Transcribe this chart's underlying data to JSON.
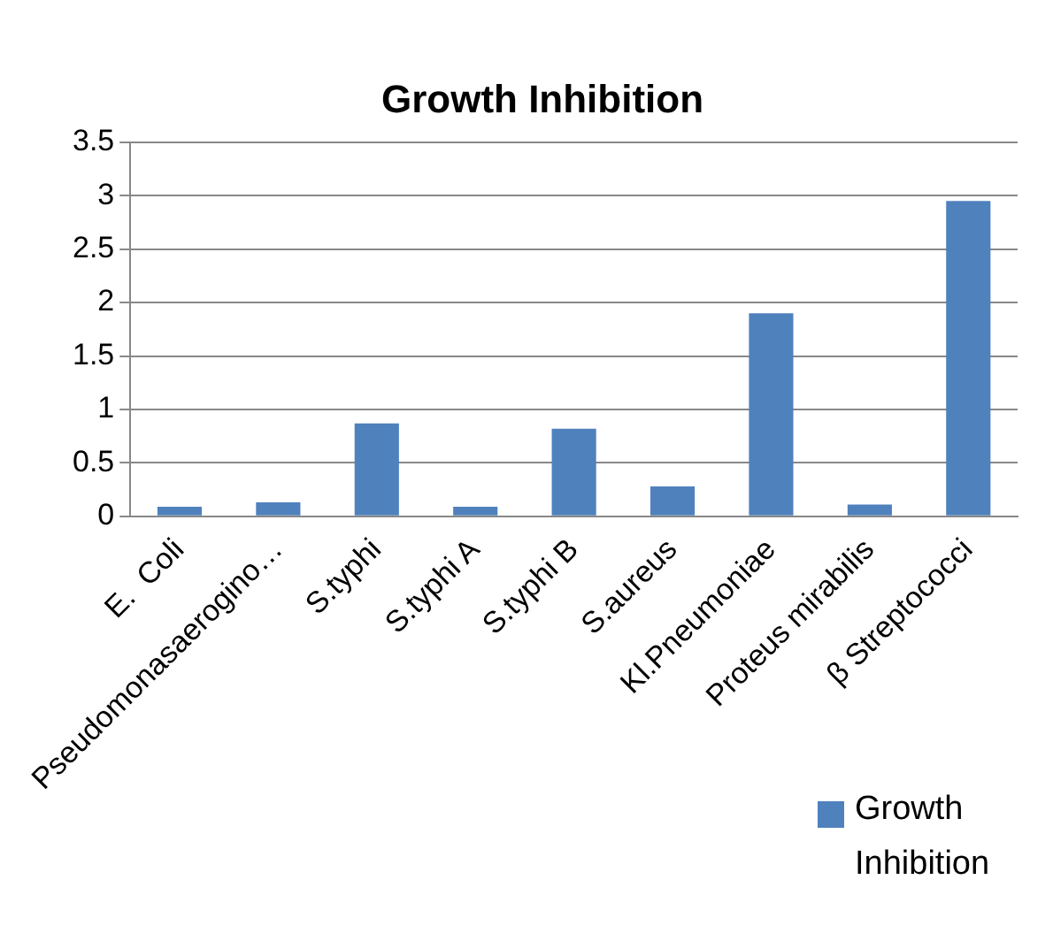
{
  "chart_data": {
    "type": "bar",
    "title": "Growth Inhibition",
    "categories": [
      "E.  Coli",
      "Pseudomonasaerogino…",
      "S.typhi",
      "S.typhi A",
      "S.typhi B",
      "S.aureus",
      "Kl.Pneumoniae",
      "Proteus mirabilis",
      "β Streptococci"
    ],
    "series": [
      {
        "name": "Growth Inhibition",
        "color": "#4f81bd",
        "values": [
          0.09,
          0.13,
          0.87,
          0.09,
          0.82,
          0.28,
          1.9,
          0.11,
          2.95
        ]
      }
    ],
    "ylim": [
      0,
      3.5
    ],
    "yticks": [
      0,
      0.5,
      1,
      1.5,
      2,
      2.5,
      3,
      3.5
    ],
    "grid": "y",
    "legend": "bottom right"
  }
}
